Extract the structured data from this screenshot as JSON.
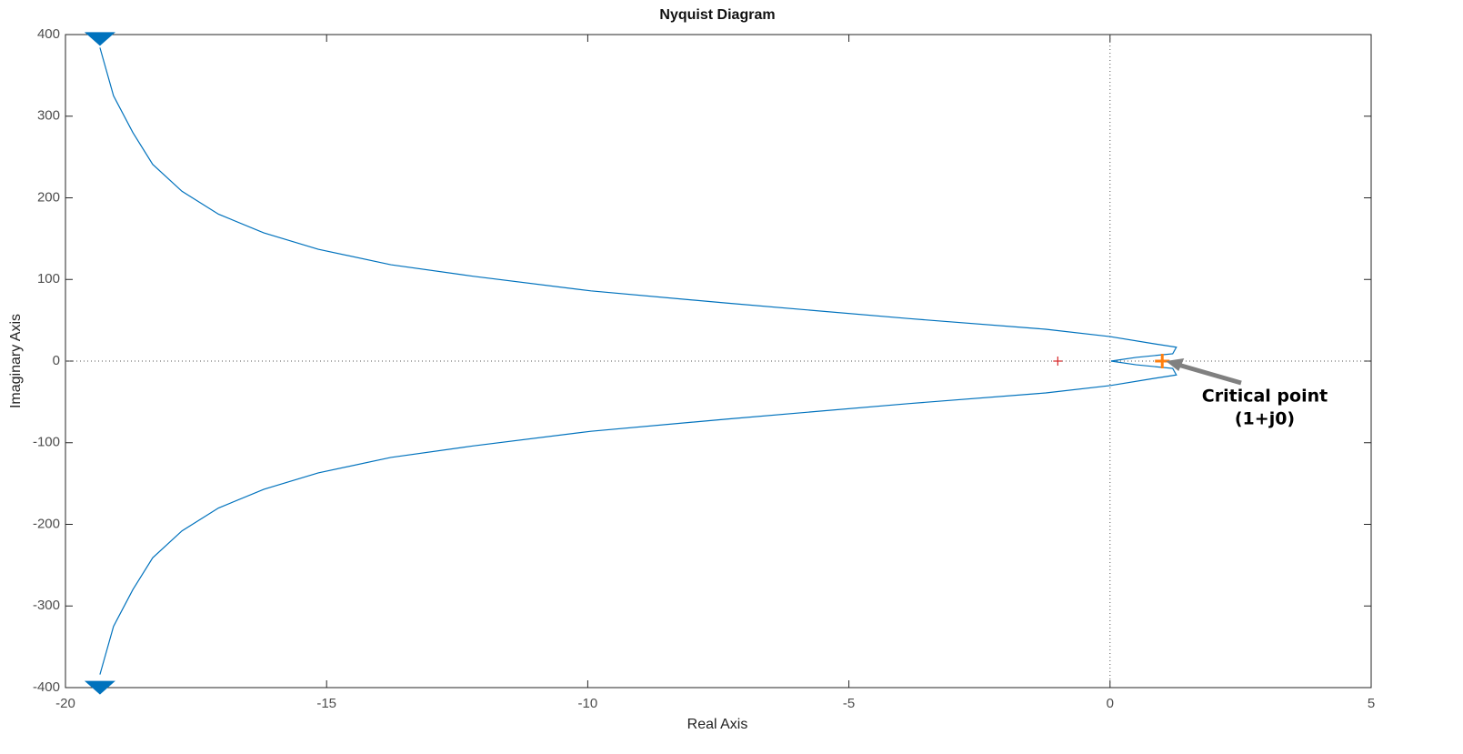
{
  "chart_data": {
    "type": "line",
    "title": "Nyquist Diagram",
    "x_label": "Real Axis",
    "y_label": "Imaginary Axis",
    "xlim": [
      -20,
      5
    ],
    "xticks": [
      -20,
      -15,
      -10,
      -5,
      0,
      5
    ],
    "ylim": [
      -400,
      400
    ],
    "yticks": [
      -400,
      -300,
      -200,
      -100,
      0,
      100,
      200,
      300,
      400
    ],
    "series": [
      {
        "color": "#0072bd",
        "x": [
          -19.34,
          -19.08,
          -18.71,
          -18.33,
          -17.77,
          -17.07,
          -16.2,
          -15.16,
          -13.77,
          -12.2,
          -9.94,
          -7.33,
          -3.84,
          -1.23,
          0,
          0.86,
          1.27,
          1.2,
          0.5,
          0.02
        ],
        "values": [
          384,
          325,
          280,
          241,
          208,
          180,
          157,
          137,
          118,
          104,
          86,
          71,
          52,
          39,
          30,
          21,
          17,
          9,
          4.5,
          0
        ]
      },
      {
        "color": "#0072bd",
        "x": [
          -19.34,
          -19.08,
          -18.71,
          -18.33,
          -17.77,
          -17.07,
          -16.2,
          -15.16,
          -13.77,
          -12.2,
          -9.94,
          -7.33,
          -3.84,
          -1.23,
          0,
          0.86,
          1.27,
          1.2,
          0.5,
          0.02
        ],
        "values": [
          -384,
          -325,
          -280,
          -241,
          -208,
          -180,
          -157,
          -137,
          -118,
          -104,
          -86,
          -71,
          -52,
          -39,
          -30,
          -21,
          -17,
          -9,
          -4.5,
          0
        ]
      }
    ],
    "markers": [
      {
        "x": -1,
        "y": 0,
        "color": "#d62728"
      },
      {
        "x": 1,
        "y": 0,
        "color": "#ff7f0e"
      }
    ],
    "annotation": [
      "Critical point",
      "(1+j0)"
    ]
  }
}
